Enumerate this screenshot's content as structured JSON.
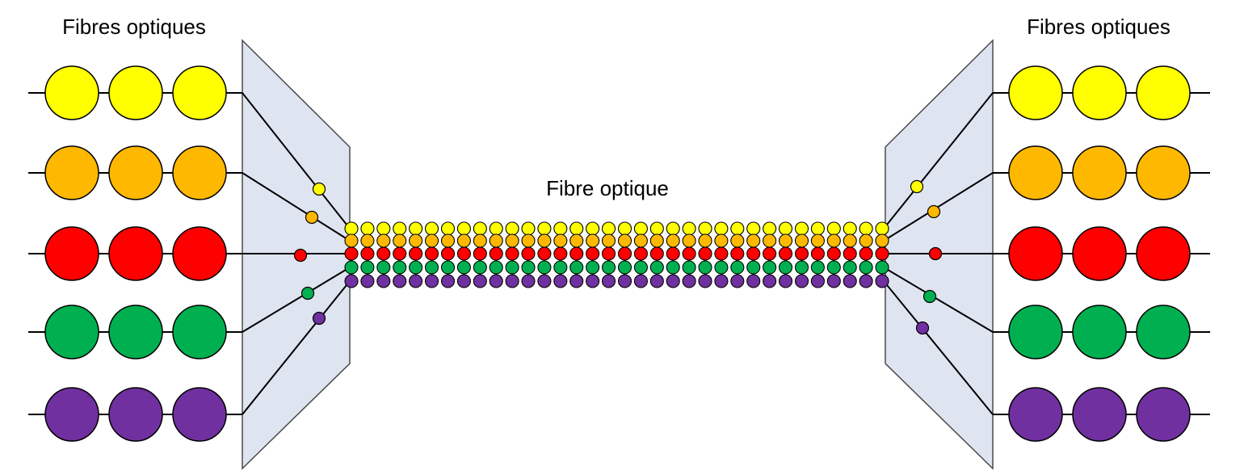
{
  "labels": {
    "left_title": "Fibres optiques",
    "right_title": "Fibres optiques",
    "center_title": "Fibre optique"
  },
  "channels": [
    {
      "color": "#ffff00",
      "name": "yellow"
    },
    {
      "color": "#ffb800",
      "name": "orange"
    },
    {
      "color": "#ff0000",
      "name": "red"
    },
    {
      "color": "#00b050",
      "name": "green"
    },
    {
      "color": "#7030a0",
      "name": "purple"
    }
  ],
  "stroke_color": "#000000",
  "multiplexer_fill": "#dfe4f1",
  "multiplexer_stroke": "#4a4a4a",
  "circles_per_input_fiber": 3,
  "beads_per_trunk_row": 34
}
